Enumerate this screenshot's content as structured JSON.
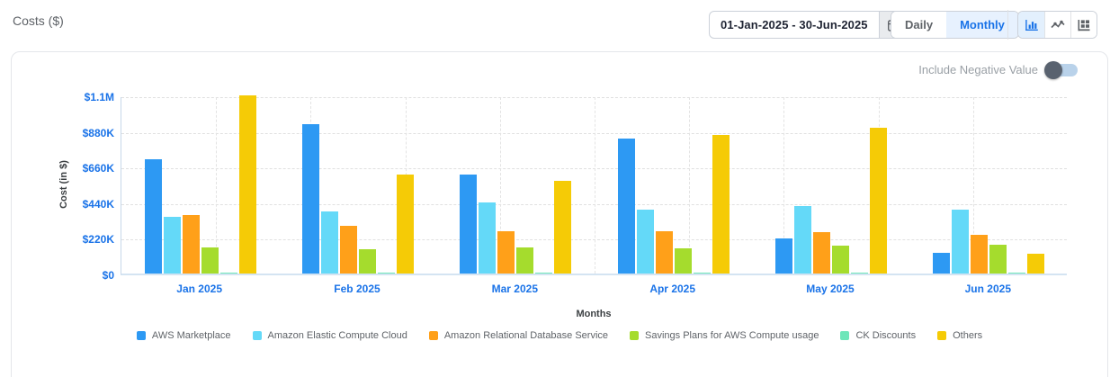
{
  "header": {
    "title": "Costs ($)"
  },
  "toolbar": {
    "date_range": "01-Jan-2025 - 30-Jun-2025",
    "calendar_icon": "calendar-icon",
    "daily_label": "Daily",
    "monthly_label": "Monthly",
    "active_granularity": "Monthly",
    "view_icons": [
      "bar-chart-icon",
      "line-chart-icon",
      "table-icon"
    ],
    "active_view": "bar-chart-icon"
  },
  "panel": {
    "toggle_label": "Include Negative Value",
    "toggle_on": false
  },
  "colors": {
    "accent_blue": "#1a73e8",
    "tick_blue": "#1a73e8",
    "active_bg": "#e7f1fe",
    "toggle_track": "#b9d2ea",
    "toggle_knob": "#59626f"
  },
  "chart_data": {
    "type": "bar",
    "title": "",
    "xlabel": "Months",
    "ylabel": "Cost (in $)",
    "ylim": [
      0,
      1100000
    ],
    "ytick_labels": [
      "$0",
      "$220K",
      "$440K",
      "$660K",
      "$880K",
      "$1.1M"
    ],
    "grid": true,
    "legend_position": "bottom",
    "categories": [
      "Jan 2025",
      "Feb 2025",
      "Mar 2025",
      "Apr 2025",
      "May 2025",
      "Jun 2025"
    ],
    "series": [
      {
        "name": "AWS Marketplace",
        "color": "#2d99f3",
        "values": [
          705000,
          920000,
          610000,
          835000,
          215000,
          130000
        ]
      },
      {
        "name": "Amazon Elastic Compute Cloud",
        "color": "#64d9f8",
        "values": [
          350000,
          385000,
          440000,
          395000,
          415000,
          395000
        ]
      },
      {
        "name": "Amazon Relational Database Service",
        "color": "#ffa019",
        "values": [
          360000,
          295000,
          260000,
          260000,
          255000,
          240000
        ]
      },
      {
        "name": "Savings Plans for AWS Compute usage",
        "color": "#a5dc2d",
        "values": [
          160000,
          150000,
          160000,
          155000,
          175000,
          180000
        ]
      },
      {
        "name": "CK Discounts",
        "color": "#6ee6b9",
        "values": [
          5000,
          4000,
          4000,
          4000,
          4000,
          5000
        ]
      },
      {
        "name": "Others",
        "color": "#f5cb06",
        "values": [
          1100000,
          610000,
          570000,
          855000,
          900000,
          125000
        ]
      }
    ]
  }
}
